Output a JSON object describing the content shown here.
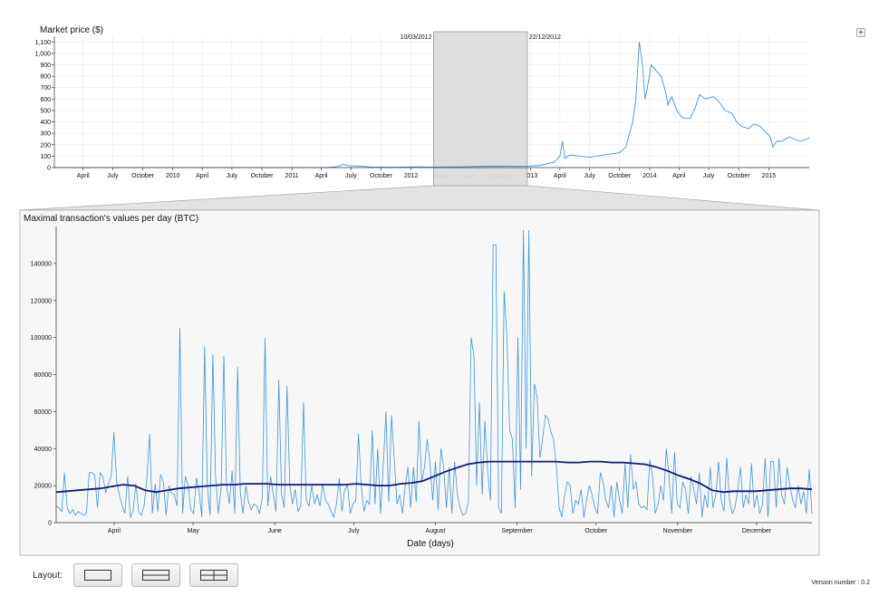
{
  "overview": {
    "title": "Market price ($)",
    "brush_start_label": "10/03/2012",
    "brush_end_label": "22/12/2012",
    "brush_start_date": "2012-03-10",
    "brush_end_date": "2012-12-22"
  },
  "detail": {
    "title": "Maximal transaction's values per day (BTC)",
    "xlabel": "Date (days)"
  },
  "controls": {
    "layout_label": "Layout:",
    "version": "Version number : 0.2",
    "plus": "+"
  },
  "colors": {
    "series_line": "#3b95e2",
    "moving_average": "#0d1a7a",
    "panel_bg": "#f7f7f7",
    "brush_fill": "#dcdcdc",
    "grid": "#ececec"
  },
  "chart_data": [
    {
      "type": "line",
      "title": "Market price ($)",
      "xlabel": "",
      "ylabel": "",
      "x_range": [
        "2009-01-03",
        "2015-05-05"
      ],
      "ylim": [
        0,
        1150
      ],
      "yticks": [
        0,
        100,
        200,
        300,
        400,
        500,
        600,
        700,
        800,
        900,
        1000,
        1100
      ],
      "ytick_labels": [
        "0",
        "100",
        "200",
        "300",
        "400",
        "500",
        "600",
        "700",
        "800",
        "900",
        "1,000",
        "1,100"
      ],
      "xtick_labels": [
        "April",
        "July",
        "October",
        "2010",
        "April",
        "July",
        "October",
        "2011",
        "April",
        "July",
        "October",
        "2012",
        "April",
        "July",
        "October",
        "2013",
        "April",
        "July",
        "October",
        "2014",
        "April",
        "July",
        "October",
        "2015"
      ],
      "grid": true,
      "series": [
        {
          "x": [
            "2009-01-03",
            "2010-07-17",
            "2010-11-06",
            "2011-02-10",
            "2011-04-15",
            "2011-05-20",
            "2011-06-08",
            "2011-06-20",
            "2011-07-20",
            "2011-09-01",
            "2011-10-20",
            "2011-11-20",
            "2012-01-10",
            "2012-03-01",
            "2012-06-01",
            "2012-08-15",
            "2012-10-01",
            "2012-12-22",
            "2013-02-01",
            "2013-03-15",
            "2013-04-01",
            "2013-04-09",
            "2013-04-16",
            "2013-05-01",
            "2013-07-01",
            "2013-08-15",
            "2013-10-01",
            "2013-10-20",
            "2013-11-10",
            "2013-11-20",
            "2013-11-27",
            "2013-11-30",
            "2013-12-05",
            "2013-12-10",
            "2013-12-18",
            "2013-12-25",
            "2014-01-06",
            "2014-01-20",
            "2014-02-05",
            "2014-02-20",
            "2014-02-26",
            "2014-03-10",
            "2014-03-25",
            "2014-04-10",
            "2014-04-20",
            "2014-05-05",
            "2014-05-20",
            "2014-06-03",
            "2014-06-20",
            "2014-07-15",
            "2014-08-01",
            "2014-08-20",
            "2014-09-10",
            "2014-09-25",
            "2014-10-10",
            "2014-11-01",
            "2014-11-15",
            "2014-12-01",
            "2014-12-20",
            "2015-01-05",
            "2015-01-14",
            "2015-01-25",
            "2015-02-10",
            "2015-03-05",
            "2015-03-20",
            "2015-04-05",
            "2015-04-20",
            "2015-05-05"
          ],
          "y": [
            0,
            0.1,
            0.3,
            1,
            1,
            7,
            29,
            17,
            14,
            5,
            3,
            3,
            6,
            5,
            6,
            12,
            12,
            13,
            20,
            47,
            100,
            230,
            80,
            110,
            90,
            110,
            130,
            180,
            400,
            600,
            950,
            1100,
            1000,
            900,
            600,
            700,
            900,
            850,
            800,
            650,
            550,
            620,
            500,
            440,
            430,
            430,
            520,
            640,
            600,
            620,
            580,
            500,
            475,
            400,
            360,
            340,
            380,
            370,
            320,
            270,
            180,
            230,
            230,
            270,
            250,
            230,
            240,
            260
          ]
        }
      ]
    },
    {
      "type": "line",
      "title": "Maximal transaction's values per day (BTC)",
      "xlabel": "Date (days)",
      "ylabel": "",
      "x_range": [
        "2012-03-10",
        "2012-12-22"
      ],
      "ylim": [
        0,
        160000
      ],
      "yticks": [
        0,
        20000,
        40000,
        60000,
        80000,
        100000,
        120000,
        140000
      ],
      "ytick_labels": [
        "0",
        "20000",
        "40000",
        "60000",
        "80000",
        "100000",
        "120000",
        "140000"
      ],
      "xtick_labels": [
        "April",
        "May",
        "June",
        "July",
        "August",
        "September",
        "October",
        "November",
        "December"
      ],
      "grid": false,
      "series": [
        {
          "name": "",
          "start_date": "2012-03-10",
          "values": [
            9000,
            8000,
            6000,
            27000,
            8000,
            5000,
            7000,
            4000,
            6000,
            5000,
            4000,
            5000,
            27000,
            27000,
            26000,
            8000,
            27000,
            25000,
            16000,
            21000,
            25000,
            49000,
            22000,
            15000,
            9000,
            5000,
            25000,
            3000,
            6000,
            21000,
            6000,
            4000,
            9000,
            24000,
            48000,
            5000,
            21000,
            6000,
            26000,
            22000,
            4000,
            20000,
            16000,
            15000,
            9000,
            105000,
            5000,
            25000,
            20000,
            7000,
            5000,
            24000,
            17000,
            3000,
            95000,
            20000,
            4000,
            91000,
            25000,
            5000,
            18000,
            90000,
            20000,
            10000,
            28000,
            5000,
            84000,
            16000,
            5000,
            20000,
            11000,
            7000,
            10000,
            9000,
            5000,
            14000,
            100000,
            9000,
            25000,
            15000,
            6000,
            77000,
            15000,
            8000,
            74000,
            20000,
            10000,
            18000,
            6000,
            9000,
            65000,
            12000,
            9000,
            20000,
            10000,
            15000,
            9000,
            21000,
            12000,
            10000,
            6000,
            3000,
            10000,
            24000,
            6000,
            18000,
            20000,
            5000,
            10000,
            12000,
            48000,
            20000,
            6000,
            12000,
            10000,
            50000,
            10000,
            40000,
            5000,
            30000,
            60000,
            11000,
            58000,
            35000,
            10000,
            15000,
            5000,
            20000,
            30000,
            8000,
            30000,
            11000,
            55000,
            22000,
            30000,
            45000,
            32000,
            12000,
            33000,
            7000,
            40000,
            30000,
            8000,
            30000,
            5000,
            33000,
            15000,
            8000,
            4000,
            5000,
            11000,
            100000,
            90000,
            20000,
            65000,
            15000,
            55000,
            28000,
            12000,
            150000,
            150000,
            8000,
            5000,
            125000,
            100000,
            50000,
            45000,
            8000,
            100000,
            18000,
            158000,
            40000,
            158000,
            25000,
            75000,
            68000,
            35000,
            45000,
            58000,
            56000,
            49000,
            45000,
            30000,
            8000,
            3000,
            15000,
            22000,
            20000,
            5000,
            12000,
            10000,
            18000,
            3000,
            12000,
            20000,
            15000,
            8000,
            5000,
            27000,
            22000,
            12000,
            8000,
            20000,
            3000,
            22000,
            12000,
            5000,
            32000,
            8000,
            37000,
            18000,
            22000,
            10000,
            8000,
            9000,
            7000,
            34000,
            25000,
            5000,
            10000,
            20000,
            12000,
            40000,
            25000,
            5000,
            38000,
            10000,
            8000,
            22000,
            18000,
            5000,
            25000,
            18000,
            10000,
            27000,
            3000,
            15000,
            8000,
            30000,
            8000,
            15000,
            33000,
            12000,
            6000,
            35000,
            12000,
            5000,
            8000,
            18000,
            30000,
            8000,
            15000,
            10000,
            32000,
            8000,
            15000,
            5000,
            10000,
            35000,
            3000,
            33000,
            33000,
            8000,
            35000,
            15000,
            10000,
            30000,
            20000,
            12000,
            8000,
            20000,
            10000,
            17000,
            5000,
            29000,
            5000
          ]
        },
        {
          "name": "",
          "start_date": "2012-03-10",
          "sample_every_days": 5,
          "values": [
            16500,
            17000,
            17500,
            18000,
            18500,
            19500,
            20500,
            20000,
            17500,
            16500,
            17500,
            18500,
            19000,
            19500,
            20000,
            20500,
            20500,
            21000,
            21000,
            21000,
            20500,
            20500,
            20500,
            20500,
            20500,
            20500,
            20500,
            21000,
            20500,
            20000,
            20000,
            21000,
            21500,
            22500,
            25000,
            27500,
            29500,
            31500,
            32500,
            33000,
            33000,
            33000,
            33000,
            33000,
            33000,
            33000,
            32500,
            32500,
            33000,
            33000,
            32500,
            32500,
            32000,
            31500,
            30000,
            28000,
            25500,
            23500,
            21000,
            17500,
            16500,
            17000,
            17000,
            17000,
            17500,
            18000,
            18500,
            18500,
            18000
          ]
        }
      ]
    }
  ]
}
